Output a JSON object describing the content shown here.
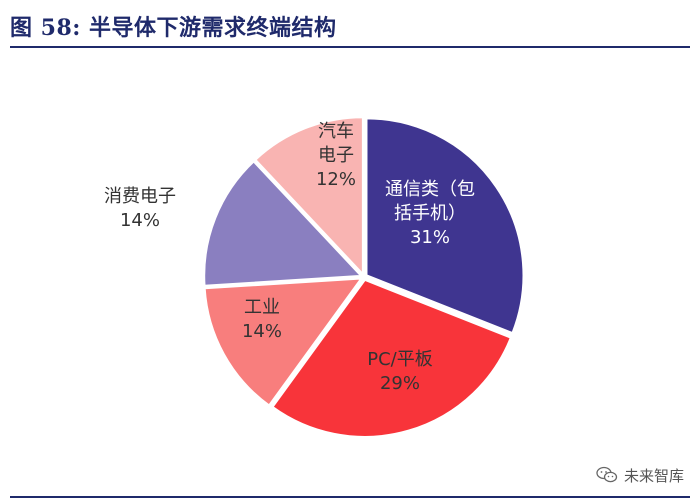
{
  "header": {
    "title": "图 58:  半导体下游需求终端结构"
  },
  "watermark": {
    "icon": "wechat-icon",
    "text": "未来智库"
  },
  "chart_data": {
    "type": "pie",
    "slices": [
      {
        "label_lines": [
          "通信类（包",
          "括手机）"
        ],
        "pct_text": "31%",
        "value": 31,
        "color": "#3f3590",
        "text_color": "#ffffff"
      },
      {
        "label_lines": [
          "PC/平板"
        ],
        "pct_text": "29%",
        "value": 29,
        "color": "#f8343a",
        "text_color": "#333333"
      },
      {
        "label_lines": [
          "工业"
        ],
        "pct_text": "14%",
        "value": 14,
        "color": "#f87e7d",
        "text_color": "#333333"
      },
      {
        "label_lines": [
          "消费电子"
        ],
        "pct_text": "14%",
        "value": 14,
        "color": "#8a7fc0",
        "text_color": "#333333"
      },
      {
        "label_lines": [
          "汽车",
          "电子"
        ],
        "pct_text": "12%",
        "value": 12,
        "color": "#f9b4b2",
        "text_color": "#333333"
      }
    ]
  }
}
